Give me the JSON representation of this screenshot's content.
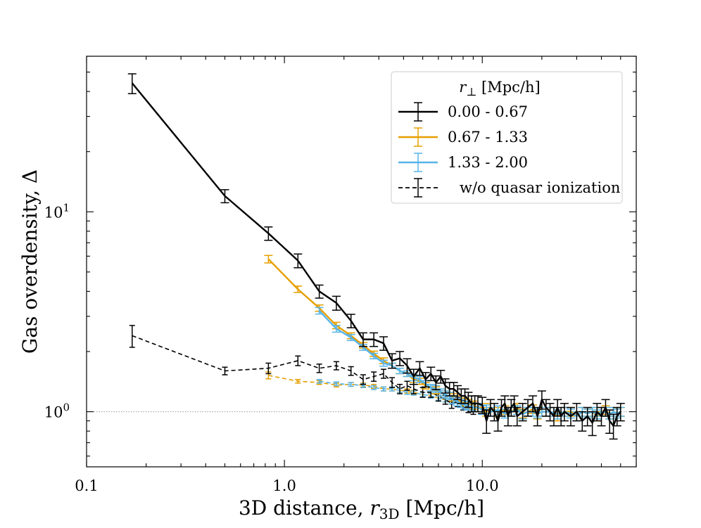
{
  "chart_data": {
    "type": "line",
    "title": "",
    "xlabel": "3D distance, r3D [Mpc/h]",
    "ylabel": "Gas overdensity, Δ",
    "xlabel_parts": {
      "prefix": "3D distance, ",
      "var": "r",
      "sub": "3D",
      "suffix": " [Mpc/h]"
    },
    "ylabel_parts": {
      "prefix": "Gas overdensity, ",
      "symbol": "Δ"
    },
    "xscale": "log",
    "yscale": "log",
    "xlim": [
      0.1,
      60
    ],
    "ylim": [
      0.53,
      60
    ],
    "xticks": [
      {
        "value": 0.1,
        "label": "0.1"
      },
      {
        "value": 1.0,
        "label": "1.0"
      },
      {
        "value": 10.0,
        "label": "10.0"
      }
    ],
    "yticks": [
      {
        "value": 1,
        "label": "10",
        "exp": "0"
      },
      {
        "value": 10,
        "label": "10",
        "exp": "1"
      }
    ],
    "reference_line": {
      "y": 1.0,
      "style": "dotted",
      "color": "#999999"
    },
    "legend": {
      "position": "top-right",
      "title": "r⊥ [Mpc/h]",
      "title_parts": {
        "var": "r",
        "sub": "⊥",
        "suffix": " [Mpc/h]"
      },
      "entries": [
        {
          "label": "0.00 - 0.67",
          "color": "#000000",
          "dashed": false
        },
        {
          "label": "0.67 - 1.33",
          "color": "#e69f00",
          "dashed": false
        },
        {
          "label": "1.33 - 2.00",
          "color": "#56b4e9",
          "dashed": false
        },
        {
          "label": "w/o quasar ionization",
          "color": "#000000",
          "dashed": true
        }
      ]
    },
    "series": [
      {
        "name": "0.00 - 0.67",
        "color": "#000000",
        "dashed": false,
        "x": [
          0.17,
          0.5,
          0.83,
          1.17,
          1.5,
          1.83,
          2.17,
          2.5,
          2.83,
          3.17,
          3.5,
          3.83,
          4.17,
          4.5,
          4.83,
          5.17,
          5.5,
          5.83,
          6.17,
          6.5,
          6.83,
          7.17,
          7.5,
          7.83,
          8.17,
          8.5,
          8.83,
          9.17,
          9.5,
          10.0,
          10.5,
          11.0,
          11.5,
          12.0,
          12.5,
          13.0,
          13.5,
          14.0,
          14.5,
          15.0,
          16.0,
          17.0,
          18.0,
          19.0,
          20.0,
          21.0,
          22.0,
          23.0,
          24.0,
          25.0,
          26.0,
          28.0,
          30.0,
          32.0,
          34.0,
          36.0,
          38.0,
          40.0,
          42.0,
          44.0,
          46.0,
          48.0,
          50.0
        ],
        "y": [
          44.0,
          12.0,
          7.8,
          5.7,
          4.0,
          3.5,
          2.85,
          2.3,
          2.3,
          2.2,
          1.8,
          1.85,
          1.7,
          1.5,
          1.65,
          1.45,
          1.55,
          1.4,
          1.5,
          1.35,
          1.3,
          1.3,
          1.25,
          1.2,
          1.2,
          1.15,
          1.1,
          1.1,
          1.1,
          1.08,
          0.9,
          1.05,
          1.0,
          0.9,
          1.05,
          1.1,
          0.95,
          1.05,
          1.1,
          0.95,
          1.0,
          1.05,
          1.1,
          0.95,
          1.15,
          1.05,
          1.0,
          0.95,
          1.05,
          0.95,
          1.0,
          0.95,
          1.0,
          0.9,
          0.95,
          0.88,
          1.0,
          0.95,
          1.05,
          0.9,
          0.85,
          0.95,
          1.0
        ],
        "yerr": [
          5.0,
          0.9,
          0.6,
          0.45,
          0.3,
          0.28,
          0.22,
          0.18,
          0.18,
          0.17,
          0.15,
          0.15,
          0.14,
          0.13,
          0.13,
          0.12,
          0.12,
          0.11,
          0.11,
          0.11,
          0.1,
          0.1,
          0.1,
          0.1,
          0.1,
          0.1,
          0.1,
          0.1,
          0.1,
          0.1,
          0.12,
          0.1,
          0.1,
          0.1,
          0.1,
          0.1,
          0.1,
          0.1,
          0.1,
          0.1,
          0.1,
          0.1,
          0.1,
          0.1,
          0.12,
          0.1,
          0.1,
          0.1,
          0.1,
          0.1,
          0.1,
          0.1,
          0.1,
          0.1,
          0.1,
          0.12,
          0.1,
          0.1,
          0.1,
          0.12,
          0.12,
          0.1,
          0.1
        ]
      },
      {
        "name": "0.67 - 1.33",
        "color": "#e69f00",
        "dashed": false,
        "x": [
          0.83,
          1.17,
          1.5,
          1.83,
          2.17,
          2.5,
          2.83,
          3.17,
          3.5,
          3.83,
          4.17,
          4.5,
          4.83,
          5.17,
          5.5,
          5.83,
          6.17,
          6.5,
          6.83,
          7.17,
          7.5,
          7.83,
          8.17,
          8.5,
          9.0,
          9.5,
          10.0,
          10.5,
          11.0,
          12.0,
          13.0,
          14.0,
          15.0,
          16.0,
          17.0,
          18.0,
          19.0,
          20.0,
          22.0,
          24.0,
          26.0,
          28.0,
          30.0,
          32.0,
          34.0,
          36.0,
          38.0,
          40.0,
          42.0,
          44.0,
          46.0,
          48.0,
          50.0
        ],
        "y": [
          5.8,
          4.1,
          3.3,
          2.7,
          2.4,
          2.15,
          1.95,
          1.8,
          1.7,
          1.6,
          1.55,
          1.45,
          1.42,
          1.35,
          1.32,
          1.28,
          1.25,
          1.22,
          1.2,
          1.18,
          1.15,
          1.12,
          1.12,
          1.1,
          1.08,
          1.05,
          1.05,
          1.0,
          1.05,
          1.0,
          1.02,
          1.0,
          1.05,
          0.98,
          1.0,
          1.03,
          0.97,
          1.0,
          1.0,
          0.95,
          1.0,
          1.0,
          0.95,
          1.0,
          0.98,
          1.0,
          0.95,
          1.0,
          1.02,
          0.97,
          1.0,
          0.98,
          1.0
        ],
        "yerr": [
          0.25,
          0.15,
          0.12,
          0.1,
          0.08,
          0.07,
          0.06,
          0.06,
          0.05,
          0.05,
          0.05,
          0.05,
          0.05,
          0.05,
          0.05,
          0.05,
          0.05,
          0.05,
          0.05,
          0.05,
          0.05,
          0.05,
          0.05,
          0.05,
          0.05,
          0.05,
          0.05,
          0.05,
          0.05,
          0.05,
          0.05,
          0.05,
          0.05,
          0.05,
          0.05,
          0.05,
          0.05,
          0.05,
          0.05,
          0.05,
          0.05,
          0.05,
          0.05,
          0.05,
          0.05,
          0.05,
          0.05,
          0.05,
          0.05,
          0.05,
          0.05,
          0.05,
          0.05
        ]
      },
      {
        "name": "1.33 - 2.00",
        "color": "#56b4e9",
        "dashed": false,
        "x": [
          1.5,
          1.83,
          2.17,
          2.5,
          2.83,
          3.17,
          3.5,
          3.83,
          4.17,
          4.5,
          4.83,
          5.17,
          5.5,
          5.83,
          6.17,
          6.5,
          6.83,
          7.17,
          7.5,
          7.83,
          8.17,
          8.5,
          9.0,
          9.5,
          10.0,
          10.5,
          11.0,
          12.0,
          13.0,
          14.0,
          15.0,
          16.0,
          17.0,
          18.0,
          19.0,
          20.0,
          22.0,
          24.0,
          26.0,
          28.0,
          30.0,
          32.0,
          34.0,
          36.0,
          38.0,
          40.0,
          42.0,
          44.0,
          46.0,
          48.0,
          50.0
        ],
        "y": [
          3.2,
          2.6,
          2.35,
          2.1,
          1.9,
          1.75,
          1.7,
          1.6,
          1.55,
          1.48,
          1.45,
          1.38,
          1.32,
          1.3,
          1.25,
          1.22,
          1.2,
          1.15,
          1.12,
          1.1,
          1.08,
          1.07,
          1.05,
          1.05,
          1.02,
          1.03,
          1.0,
          1.02,
          0.98,
          1.0,
          1.02,
          0.97,
          1.0,
          1.0,
          0.98,
          1.0,
          1.0,
          0.97,
          1.0,
          0.98,
          0.95,
          1.0,
          0.98,
          1.0,
          0.97,
          1.0,
          1.0,
          0.97,
          1.0,
          0.98,
          1.0
        ],
        "yerr": [
          0.12,
          0.1,
          0.08,
          0.07,
          0.06,
          0.06,
          0.05,
          0.05,
          0.05,
          0.05,
          0.05,
          0.05,
          0.05,
          0.05,
          0.05,
          0.05,
          0.05,
          0.05,
          0.05,
          0.05,
          0.05,
          0.05,
          0.05,
          0.05,
          0.05,
          0.05,
          0.05,
          0.05,
          0.05,
          0.05,
          0.05,
          0.05,
          0.05,
          0.05,
          0.05,
          0.05,
          0.05,
          0.05,
          0.05,
          0.05,
          0.05,
          0.05,
          0.05,
          0.05,
          0.05,
          0.05,
          0.05,
          0.05,
          0.05,
          0.05,
          0.05
        ]
      },
      {
        "name": "w/o quasar ionization (0.00 - 0.67)",
        "color": "#000000",
        "dashed": true,
        "x": [
          0.17,
          0.5,
          0.83,
          1.17,
          1.5,
          1.83,
          2.17,
          2.5,
          2.83,
          3.17,
          3.5,
          3.83,
          4.17,
          4.5,
          5.0,
          5.5,
          6.0,
          6.5,
          7.0,
          7.5,
          8.0,
          8.5,
          9.0
        ],
        "y": [
          2.4,
          1.6,
          1.65,
          1.8,
          1.65,
          1.7,
          1.6,
          1.45,
          1.5,
          1.55,
          1.4,
          1.3,
          1.35,
          1.3,
          1.25,
          1.25,
          1.2,
          1.15,
          1.1,
          1.12,
          1.08,
          1.05,
          1.03
        ],
        "yerr": [
          0.3,
          0.07,
          0.1,
          0.1,
          0.08,
          0.08,
          0.08,
          0.08,
          0.08,
          0.08,
          0.08,
          0.07,
          0.07,
          0.07,
          0.07,
          0.07,
          0.07,
          0.06,
          0.06,
          0.06,
          0.06,
          0.06,
          0.06
        ]
      },
      {
        "name": "w/o quasar ionization (0.67 - 1.33)",
        "color": "#e69f00",
        "dashed": true,
        "x": [
          0.83,
          1.17,
          1.5,
          1.83,
          2.17,
          2.5,
          2.83,
          3.17,
          3.5,
          3.83,
          4.17,
          4.5,
          5.0,
          5.5,
          6.0,
          6.5,
          7.0,
          7.5,
          8.0,
          8.5,
          9.0
        ],
        "y": [
          1.52,
          1.42,
          1.4,
          1.36,
          1.37,
          1.36,
          1.34,
          1.3,
          1.3,
          1.28,
          1.27,
          1.25,
          1.22,
          1.2,
          1.17,
          1.15,
          1.12,
          1.1,
          1.08,
          1.06,
          1.05
        ],
        "yerr": [
          0.06,
          0.03,
          0.03,
          0.03,
          0.03,
          0.03,
          0.03,
          0.03,
          0.03,
          0.03,
          0.03,
          0.03,
          0.03,
          0.03,
          0.03,
          0.03,
          0.03,
          0.03,
          0.03,
          0.03,
          0.03
        ]
      },
      {
        "name": "w/o quasar ionization (1.33 - 2.00)",
        "color": "#56b4e9",
        "dashed": true,
        "x": [
          1.5,
          1.83,
          2.17,
          2.5,
          2.83,
          3.17,
          3.5,
          3.83,
          4.17,
          4.5,
          5.0,
          5.5,
          6.0,
          6.5,
          7.0,
          7.5,
          8.0,
          8.5,
          9.0
        ],
        "y": [
          1.42,
          1.38,
          1.37,
          1.35,
          1.32,
          1.3,
          1.3,
          1.28,
          1.25,
          1.24,
          1.22,
          1.2,
          1.17,
          1.15,
          1.12,
          1.1,
          1.08,
          1.06,
          1.05
        ],
        "yerr": [
          0.03,
          0.03,
          0.03,
          0.03,
          0.03,
          0.03,
          0.03,
          0.03,
          0.03,
          0.03,
          0.03,
          0.03,
          0.03,
          0.03,
          0.03,
          0.03,
          0.03,
          0.03,
          0.03
        ]
      }
    ]
  }
}
